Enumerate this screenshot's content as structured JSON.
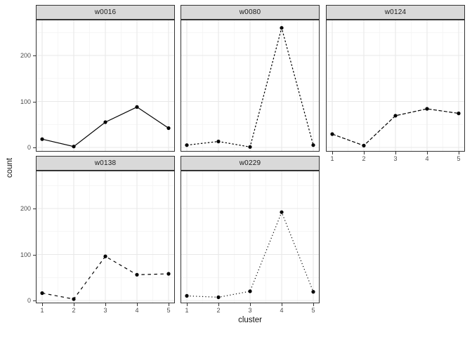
{
  "figure": {
    "kind": "faceted line chart (ggplot-style, theme_bw)"
  },
  "colors": {
    "strip_fill": "#d9d9d9",
    "strip_border": "#333333",
    "panel_border": "#333333",
    "grid_major": "#e8e8e8",
    "grid_minor": "#f2f2f2",
    "axis_text": "#4d4d4d",
    "axis_title": "#111111",
    "series": "#000000"
  },
  "chart_data": {
    "type": "line",
    "title": "",
    "xlabel": "cluster",
    "ylabel": "count",
    "x": [
      1,
      2,
      3,
      4,
      5
    ],
    "x_axis": {
      "label": "cluster",
      "tick_labels": [
        "1",
        "2",
        "3",
        "4",
        "5"
      ],
      "ticks": [
        1,
        2,
        3,
        4,
        5
      ],
      "minor": [
        1.5,
        2.5,
        3.5,
        4.5
      ],
      "limits": [
        0.8,
        5.2
      ]
    },
    "y_axis": {
      "label": "count",
      "tick_labels": [
        "0",
        "100",
        "200"
      ],
      "ticks": [
        0,
        100,
        200
      ],
      "minor": [
        50,
        150,
        250
      ],
      "limits": [
        -14,
        275
      ]
    },
    "grid": "major+minor",
    "legend": "none",
    "facets": [
      {
        "label": "w0016",
        "linetype": "solid",
        "dash": "",
        "values": [
          18,
          2,
          55,
          88,
          42
        ]
      },
      {
        "label": "w0080",
        "linetype": "22",
        "dash": "2.5,2.5",
        "values": [
          5,
          13,
          1,
          260,
          5
        ]
      },
      {
        "label": "w0124",
        "linetype": "42",
        "dash": "5,2.5",
        "values": [
          29,
          4,
          69,
          84,
          74
        ]
      },
      {
        "label": "w0138",
        "linetype": "44",
        "dash": "4.5,4.5",
        "values": [
          16,
          3,
          96,
          56,
          58
        ]
      },
      {
        "label": "w0229",
        "linetype": "13",
        "dash": "1.2,3.2",
        "values": [
          10,
          7,
          20,
          192,
          19
        ]
      }
    ]
  }
}
